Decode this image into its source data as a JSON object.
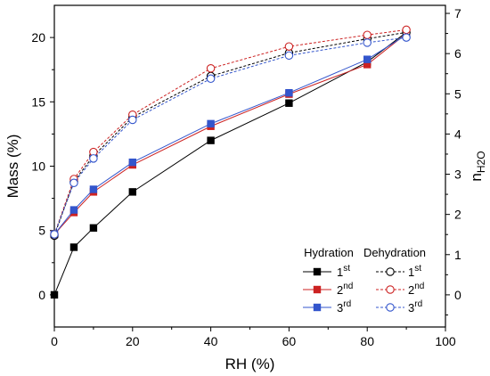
{
  "chart_data": {
    "type": "line",
    "xlabel": "RH (%)",
    "ylabel": "Mass (%)",
    "y2label": "n",
    "y2label_sub": "H2O",
    "xlim": [
      0,
      100
    ],
    "ylim": [
      -2.5,
      22.5
    ],
    "y2lim": [
      -0.8,
      7.2
    ],
    "xticks": [
      "0",
      "20",
      "40",
      "60",
      "80",
      "100"
    ],
    "yticks": [
      "0",
      "5",
      "10",
      "15",
      "20"
    ],
    "y2ticks": [
      "0",
      "1",
      "2",
      "3",
      "4",
      "5",
      "6",
      "7"
    ],
    "legend": {
      "hydration_title": "Hydration",
      "dehydration_title": "Dehydration",
      "entries": [
        {
          "base": "1",
          "sup": "st"
        },
        {
          "base": "2",
          "sup": "nd"
        },
        {
          "base": "3",
          "sup": "rd"
        }
      ]
    },
    "series": [
      {
        "group": "Hydration",
        "cycle": "1st",
        "color": "#000000",
        "marker": "filled-square",
        "dash": false,
        "x": [
          0,
          5,
          10,
          20,
          40,
          60,
          80,
          90
        ],
        "y": [
          0,
          3.7,
          5.2,
          8.0,
          12.0,
          14.9,
          18.1,
          20.4
        ]
      },
      {
        "group": "Hydration",
        "cycle": "2nd",
        "color": "#cc2222",
        "marker": "filled-square",
        "dash": false,
        "x": [
          0,
          5,
          10,
          20,
          40,
          60,
          80,
          90
        ],
        "y": [
          4.7,
          6.4,
          8.0,
          10.1,
          13.1,
          15.6,
          17.9,
          20.3
        ]
      },
      {
        "group": "Hydration",
        "cycle": "3rd",
        "color": "#3355cc",
        "marker": "filled-square",
        "dash": false,
        "x": [
          0,
          5,
          10,
          20,
          40,
          60,
          80,
          90
        ],
        "y": [
          4.7,
          6.6,
          8.2,
          10.3,
          13.3,
          15.7,
          18.3,
          20.2
        ]
      },
      {
        "group": "Dehydration",
        "cycle": "1st",
        "color": "#000000",
        "marker": "open-circle",
        "dash": true,
        "x": [
          0,
          5,
          10,
          20,
          40,
          60,
          80,
          90
        ],
        "y": [
          4.6,
          8.8,
          10.8,
          13.8,
          17.0,
          18.8,
          19.9,
          20.4
        ]
      },
      {
        "group": "Dehydration",
        "cycle": "2nd",
        "color": "#cc2222",
        "marker": "open-circle",
        "dash": true,
        "x": [
          0,
          5,
          10,
          20,
          40,
          60,
          80,
          90
        ],
        "y": [
          4.7,
          9.0,
          11.1,
          14.0,
          17.6,
          19.3,
          20.2,
          20.6
        ]
      },
      {
        "group": "Dehydration",
        "cycle": "3rd",
        "color": "#3355cc",
        "marker": "open-circle",
        "dash": true,
        "x": [
          0,
          5,
          10,
          20,
          40,
          60,
          80,
          90
        ],
        "y": [
          4.7,
          8.7,
          10.6,
          13.6,
          16.8,
          18.6,
          19.6,
          20.0
        ]
      }
    ]
  }
}
